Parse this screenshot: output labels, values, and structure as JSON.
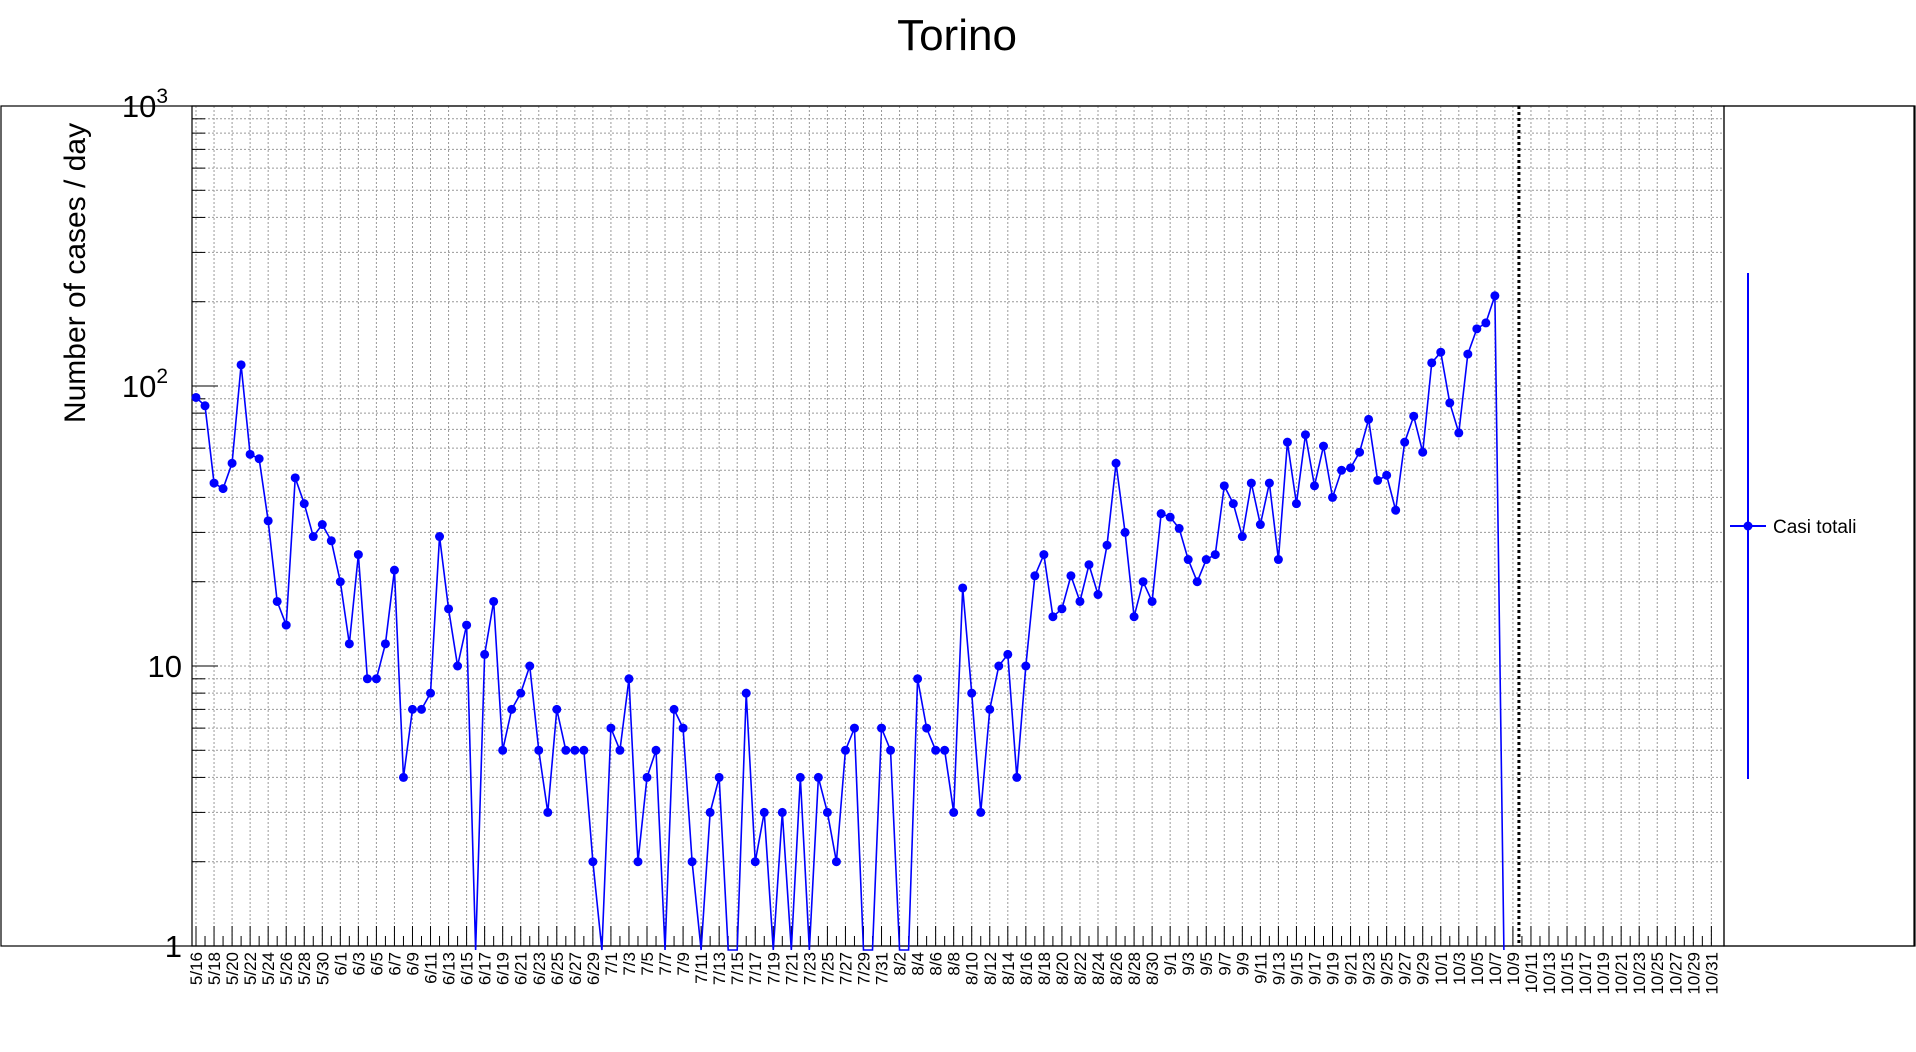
{
  "chart_data": {
    "type": "line",
    "title": "Torino",
    "xlabel": "",
    "ylabel": "Number of cases / day",
    "yscale": "log",
    "ylim": [
      1,
      1000
    ],
    "ytick_labels": [
      {
        "value": 1,
        "base": "1",
        "sup": ""
      },
      {
        "value": 10,
        "base": "10",
        "sup": ""
      },
      {
        "value": 100,
        "base": "10",
        "sup": "2"
      },
      {
        "value": 1000,
        "base": "10",
        "sup": "3"
      }
    ],
    "grid": true,
    "legend_position": "right",
    "marker_line_date": "10/9",
    "x_dates": [
      "5/16",
      "5/17",
      "5/18",
      "5/19",
      "5/20",
      "5/21",
      "5/22",
      "5/23",
      "5/24",
      "5/25",
      "5/26",
      "5/27",
      "5/28",
      "5/29",
      "5/30",
      "5/31",
      "6/1",
      "6/2",
      "6/3",
      "6/4",
      "6/5",
      "6/6",
      "6/7",
      "6/8",
      "6/9",
      "6/10",
      "6/11",
      "6/12",
      "6/13",
      "6/14",
      "6/15",
      "6/16",
      "6/17",
      "6/18",
      "6/19",
      "6/20",
      "6/21",
      "6/22",
      "6/23",
      "6/24",
      "6/25",
      "6/26",
      "6/27",
      "6/28",
      "6/29",
      "6/30",
      "7/1",
      "7/2",
      "7/3",
      "7/4",
      "7/5",
      "7/6",
      "7/7",
      "7/8",
      "7/9",
      "7/10",
      "7/11",
      "7/12",
      "7/13",
      "7/14",
      "7/15",
      "7/16",
      "7/17",
      "7/18",
      "7/19",
      "7/20",
      "7/21",
      "7/22",
      "7/23",
      "7/24",
      "7/25",
      "7/26",
      "7/27",
      "7/28",
      "7/29",
      "7/30",
      "7/31",
      "8/1",
      "8/2",
      "8/3",
      "8/4",
      "8/5",
      "8/6",
      "8/7",
      "8/8",
      "8/9",
      "8/10",
      "8/11",
      "8/12",
      "8/13",
      "8/14",
      "8/15",
      "8/16",
      "8/17",
      "8/18",
      "8/19",
      "8/20",
      "8/21",
      "8/22",
      "8/23",
      "8/24",
      "8/25",
      "8/26",
      "8/27",
      "8/28",
      "8/29",
      "8/30",
      "8/31",
      "9/1",
      "9/2",
      "9/3",
      "9/4",
      "9/5",
      "9/6",
      "9/7",
      "9/8",
      "9/9",
      "9/10",
      "9/11",
      "9/12",
      "9/13",
      "9/14",
      "9/15",
      "9/16",
      "9/17",
      "9/18",
      "9/19",
      "9/20",
      "9/21",
      "9/22",
      "9/23",
      "9/24",
      "9/25",
      "9/26",
      "9/27",
      "9/28",
      "9/29",
      "9/30",
      "10/1",
      "10/2",
      "10/3",
      "10/4",
      "10/5",
      "10/6",
      "10/7",
      "10/8",
      "10/9",
      "10/10",
      "10/11",
      "10/12",
      "10/13",
      "10/14",
      "10/15",
      "10/16",
      "10/17",
      "10/18",
      "10/19",
      "10/20",
      "10/21",
      "10/22",
      "10/23",
      "10/24",
      "10/25",
      "10/26",
      "10/27",
      "10/28",
      "10/29",
      "10/30",
      "10/31"
    ],
    "x_tick_labels": [
      "5/16",
      "5/18",
      "5/20",
      "5/22",
      "5/24",
      "5/26",
      "5/28",
      "5/30",
      "6/1",
      "6/3",
      "6/5",
      "6/7",
      "6/9",
      "6/11",
      "6/13",
      "6/15",
      "6/17",
      "6/19",
      "6/21",
      "6/23",
      "6/25",
      "6/27",
      "6/29",
      "7/1",
      "7/3",
      "7/5",
      "7/7",
      "7/9",
      "7/11",
      "7/13",
      "7/15",
      "7/17",
      "7/19",
      "7/21",
      "7/23",
      "7/25",
      "7/27",
      "7/29",
      "7/31",
      "8/2",
      "8/4",
      "8/6",
      "8/8",
      "8/10",
      "8/12",
      "8/14",
      "8/16",
      "8/18",
      "8/20",
      "8/22",
      "8/24",
      "8/26",
      "8/28",
      "8/30",
      "9/1",
      "9/3",
      "9/5",
      "9/7",
      "9/9",
      "9/11",
      "9/13",
      "9/15",
      "9/17",
      "9/19",
      "9/21",
      "9/23",
      "9/25",
      "9/27",
      "9/29",
      "10/1",
      "10/3",
      "10/5",
      "10/7",
      "10/9",
      "10/11",
      "10/13",
      "10/15",
      "10/17",
      "10/19",
      "10/21",
      "10/23",
      "10/25",
      "10/27",
      "10/29",
      "10/31"
    ],
    "series": [
      {
        "name": "Casi totali",
        "color": "#0000ff",
        "values": [
          91,
          85,
          45,
          43,
          53,
          119,
          57,
          55,
          33,
          17,
          14,
          47,
          38,
          29,
          32,
          28,
          20,
          12,
          25,
          9,
          9,
          12,
          22,
          4,
          7,
          7,
          8,
          29,
          16,
          10,
          14,
          0,
          11,
          17,
          5,
          7,
          8,
          10,
          5,
          3,
          7,
          5,
          5,
          5,
          2,
          0,
          6,
          5,
          9,
          2,
          4,
          5,
          0,
          7,
          6,
          2,
          0,
          3,
          4,
          0,
          0,
          8,
          2,
          3,
          0,
          3,
          0,
          4,
          0,
          4,
          3,
          2,
          5,
          6,
          0,
          0,
          6,
          5,
          0,
          0,
          9,
          6,
          5,
          5,
          3,
          19,
          8,
          3,
          7,
          10,
          11,
          4,
          10,
          21,
          25,
          15,
          16,
          21,
          17,
          23,
          18,
          27,
          53,
          30,
          15,
          20,
          17,
          35,
          34,
          31,
          24,
          20,
          24,
          25,
          44,
          38,
          29,
          45,
          32,
          45,
          24,
          63,
          38,
          67,
          44,
          61,
          40,
          50,
          51,
          58,
          76,
          46,
          48,
          36,
          63,
          78,
          58,
          121,
          132,
          87,
          68,
          130,
          160,
          168,
          210,
          0
        ]
      }
    ]
  }
}
